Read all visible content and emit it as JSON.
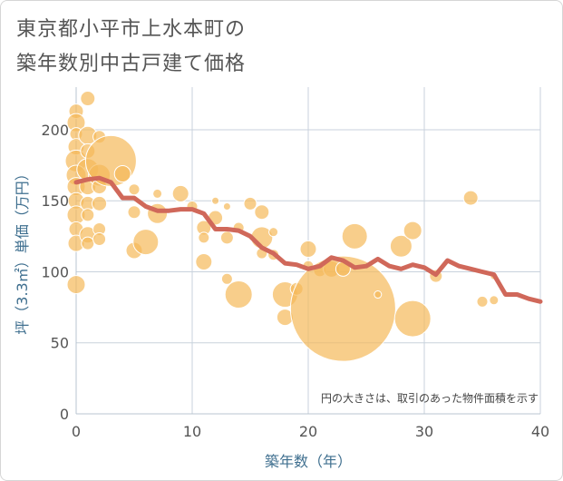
{
  "title_line1": "東京都小平市上水本町の",
  "title_line2": "築年数別中古戸建て価格",
  "chart_data": {
    "type": "scatter",
    "xlabel": "築年数（年）",
    "ylabel": "坪（3.3㎡）単価（万円）",
    "xlim": [
      0,
      40
    ],
    "ylim": [
      0,
      230
    ],
    "x_ticks": [
      "0",
      "10",
      "20",
      "30",
      "40"
    ],
    "y_ticks": [
      "0",
      "50",
      "100",
      "150",
      "200"
    ],
    "grid": true,
    "note": "円の大きさは、取引のあった物件面積を示す",
    "colors": {
      "bubble": "#f5b95a",
      "line": "#d0685a",
      "grid": "#c8d2dc",
      "axis_text": "#3f6f8f"
    },
    "bubbles": [
      {
        "x": 0,
        "y": 213,
        "size": 8
      },
      {
        "x": 0,
        "y": 205,
        "size": 10
      },
      {
        "x": 0,
        "y": 197,
        "size": 7
      },
      {
        "x": 0,
        "y": 188,
        "size": 9
      },
      {
        "x": 0,
        "y": 178,
        "size": 12
      },
      {
        "x": 0,
        "y": 168,
        "size": 11
      },
      {
        "x": 0,
        "y": 160,
        "size": 10
      },
      {
        "x": 0,
        "y": 150,
        "size": 9
      },
      {
        "x": 0,
        "y": 140,
        "size": 10
      },
      {
        "x": 0,
        "y": 130,
        "size": 8
      },
      {
        "x": 0,
        "y": 120,
        "size": 9
      },
      {
        "x": 0,
        "y": 91,
        "size": 10
      },
      {
        "x": 1,
        "y": 222,
        "size": 8
      },
      {
        "x": 1,
        "y": 196,
        "size": 10
      },
      {
        "x": 1,
        "y": 185,
        "size": 8
      },
      {
        "x": 1,
        "y": 172,
        "size": 12
      },
      {
        "x": 1,
        "y": 160,
        "size": 9
      },
      {
        "x": 1,
        "y": 148,
        "size": 8
      },
      {
        "x": 1,
        "y": 140,
        "size": 7
      },
      {
        "x": 1,
        "y": 126,
        "size": 9
      },
      {
        "x": 1,
        "y": 120,
        "size": 7
      },
      {
        "x": 2,
        "y": 195,
        "size": 7
      },
      {
        "x": 2,
        "y": 168,
        "size": 12
      },
      {
        "x": 2,
        "y": 160,
        "size": 8
      },
      {
        "x": 2,
        "y": 148,
        "size": 8
      },
      {
        "x": 2,
        "y": 130,
        "size": 7
      },
      {
        "x": 2,
        "y": 123,
        "size": 7
      },
      {
        "x": 3,
        "y": 178,
        "size": 28
      },
      {
        "x": 4,
        "y": 169,
        "size": 9
      },
      {
        "x": 5,
        "y": 158,
        "size": 6
      },
      {
        "x": 5,
        "y": 142,
        "size": 7
      },
      {
        "x": 5,
        "y": 115,
        "size": 9
      },
      {
        "x": 6,
        "y": 121,
        "size": 14
      },
      {
        "x": 7,
        "y": 155,
        "size": 5
      },
      {
        "x": 7,
        "y": 141,
        "size": 11
      },
      {
        "x": 9,
        "y": 155,
        "size": 9
      },
      {
        "x": 10,
        "y": 146,
        "size": 6
      },
      {
        "x": 11,
        "y": 131,
        "size": 8
      },
      {
        "x": 11,
        "y": 124,
        "size": 6
      },
      {
        "x": 11,
        "y": 107,
        "size": 9
      },
      {
        "x": 12,
        "y": 150,
        "size": 4
      },
      {
        "x": 12,
        "y": 138,
        "size": 8
      },
      {
        "x": 13,
        "y": 146,
        "size": 4
      },
      {
        "x": 13,
        "y": 124,
        "size": 7
      },
      {
        "x": 13,
        "y": 95,
        "size": 6
      },
      {
        "x": 14,
        "y": 131,
        "size": 6
      },
      {
        "x": 14,
        "y": 84,
        "size": 15
      },
      {
        "x": 15,
        "y": 148,
        "size": 7
      },
      {
        "x": 16,
        "y": 142,
        "size": 8
      },
      {
        "x": 16,
        "y": 124,
        "size": 12
      },
      {
        "x": 16,
        "y": 113,
        "size": 6
      },
      {
        "x": 17,
        "y": 128,
        "size": 5
      },
      {
        "x": 17,
        "y": 112,
        "size": 6
      },
      {
        "x": 18,
        "y": 84,
        "size": 14
      },
      {
        "x": 18,
        "y": 68,
        "size": 9
      },
      {
        "x": 19,
        "y": 88,
        "size": 7
      },
      {
        "x": 20,
        "y": 116,
        "size": 9
      },
      {
        "x": 20,
        "y": 104,
        "size": 6
      },
      {
        "x": 21,
        "y": 101,
        "size": 7
      },
      {
        "x": 22,
        "y": 102,
        "size": 9
      },
      {
        "x": 23,
        "y": 74,
        "size": 58
      },
      {
        "x": 23,
        "y": 102,
        "size": 8
      },
      {
        "x": 24,
        "y": 125,
        "size": 14
      },
      {
        "x": 26,
        "y": 84,
        "size": 4
      },
      {
        "x": 28,
        "y": 118,
        "size": 12
      },
      {
        "x": 29,
        "y": 129,
        "size": 10
      },
      {
        "x": 29,
        "y": 67,
        "size": 20
      },
      {
        "x": 31,
        "y": 97,
        "size": 7
      },
      {
        "x": 34,
        "y": 152,
        "size": 8
      },
      {
        "x": 35,
        "y": 79,
        "size": 6
      },
      {
        "x": 36,
        "y": 97,
        "size": 4
      },
      {
        "x": 36,
        "y": 80,
        "size": 5
      }
    ],
    "trend": {
      "x": [
        0,
        1,
        2,
        3,
        4,
        5,
        6,
        7,
        8,
        9,
        10,
        11,
        12,
        13,
        14,
        15,
        16,
        17,
        18,
        19,
        20,
        21,
        22,
        23,
        24,
        25,
        26,
        27,
        28,
        29,
        30,
        31,
        32,
        33,
        34,
        35,
        36,
        37,
        38,
        39,
        40
      ],
      "y": [
        163,
        165,
        166,
        163,
        152,
        152,
        146,
        143,
        143,
        144,
        144,
        141,
        130,
        130,
        129,
        125,
        117,
        113,
        106,
        105,
        102,
        104,
        110,
        108,
        103,
        104,
        109,
        104,
        102,
        105,
        103,
        98,
        108,
        104,
        102,
        100,
        98,
        84,
        84,
        81,
        79
      ]
    }
  }
}
